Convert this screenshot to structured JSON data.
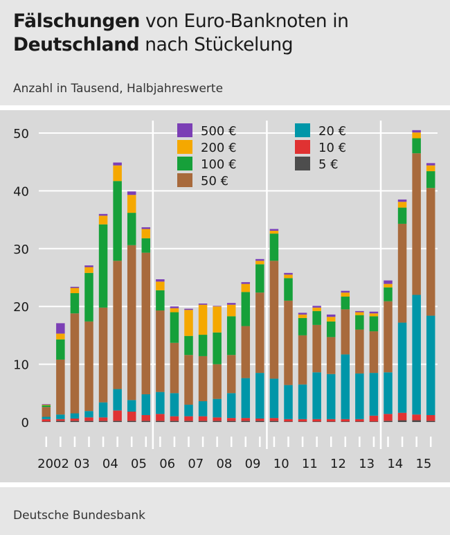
{
  "header": {
    "title_part1": "Fälschungen",
    "title_part2": " von Euro-Banknoten in",
    "title_part3": "Deutschland",
    "title_part4": " nach Stückelung",
    "subtitle": "Anzahl in Tausend, Halbjahreswerte"
  },
  "footer": {
    "source": "Deutsche Bundesbank"
  },
  "colors": {
    "500 €": "#7b3fb5",
    "200 €": "#f5a800",
    "100 €": "#16a03a",
    "50 €": "#a86a3c",
    "20 €": "#0096a8",
    "10 €": "#e03232",
    "5 €": "#4d4d4d"
  },
  "chart_data": {
    "type": "bar",
    "stacked": true,
    "ylim": [
      0,
      50
    ],
    "yticks": [
      0,
      10,
      20,
      30,
      40,
      50
    ],
    "grid": true,
    "legend_position": "top",
    "year_labels": [
      "2002",
      "03",
      "04",
      "05",
      "06",
      "07",
      "08",
      "09",
      "10",
      "11",
      "12",
      "13",
      "14",
      "15"
    ],
    "x": [
      "2002 H1",
      "2002 H2",
      "2003 H1",
      "2003 H2",
      "2004 H1",
      "2004 H2",
      "2005 H1",
      "2005 H2",
      "2006 H1",
      "2006 H2",
      "2007 H1",
      "2007 H2",
      "2008 H1",
      "2008 H2",
      "2009 H1",
      "2009 H2",
      "2010 H1",
      "2010 H2",
      "2011 H1",
      "2011 H2",
      "2012 H1",
      "2012 H2",
      "2013 H1",
      "2013 H2",
      "2014 H1",
      "2014 H2",
      "2015 H1",
      "2015 H2"
    ],
    "series": [
      {
        "name": "5 €",
        "values": [
          0.1,
          0.2,
          0.2,
          0.2,
          0.2,
          0.2,
          0.2,
          0.2,
          0.2,
          0.2,
          0.2,
          0.2,
          0.2,
          0.2,
          0.2,
          0.2,
          0.2,
          0.1,
          0.1,
          0.1,
          0.1,
          0.1,
          0.1,
          0.1,
          0.2,
          0.3,
          0.3,
          0.2
        ]
      },
      {
        "name": "10 €",
        "values": [
          0.4,
          0.3,
          0.4,
          0.6,
          0.6,
          1.8,
          1.6,
          1.0,
          1.2,
          0.8,
          0.8,
          0.8,
          0.6,
          0.5,
          0.5,
          0.4,
          0.5,
          0.4,
          0.4,
          0.4,
          0.4,
          0.4,
          0.4,
          1.0,
          1.2,
          1.3,
          1.0,
          1.0
        ]
      },
      {
        "name": "20 €",
        "values": [
          0.4,
          0.8,
          0.9,
          1.1,
          2.6,
          3.7,
          2.0,
          3.6,
          3.8,
          4.0,
          2.0,
          2.6,
          3.2,
          4.3,
          6.9,
          7.9,
          6.8,
          5.9,
          6.0,
          8.1,
          7.8,
          11.2,
          7.9,
          7.4,
          7.2,
          15.6,
          20.7,
          17.2
        ]
      },
      {
        "name": "50 €",
        "values": [
          1.7,
          9.5,
          17.3,
          15.5,
          16.4,
          22.2,
          26.8,
          24.5,
          14.1,
          8.7,
          8.6,
          7.8,
          6.0,
          6.6,
          9.0,
          13.9,
          20.4,
          14.6,
          8.5,
          8.2,
          6.4,
          7.8,
          7.6,
          7.2,
          12.3,
          17.1,
          24.5,
          22.1
        ]
      },
      {
        "name": "100 €",
        "values": [
          0.3,
          3.5,
          3.5,
          8.4,
          14.4,
          13.8,
          5.6,
          2.5,
          3.5,
          5.3,
          3.3,
          3.7,
          5.5,
          6.7,
          5.9,
          4.9,
          4.7,
          3.9,
          3.0,
          2.4,
          2.7,
          2.2,
          2.5,
          2.6,
          2.4,
          2.8,
          2.6,
          2.9
        ]
      },
      {
        "name": "200 €",
        "values": [
          0.1,
          1.0,
          0.9,
          1.0,
          1.5,
          2.7,
          3.1,
          1.6,
          1.5,
          0.7,
          4.5,
          5.2,
          4.5,
          2.0,
          1.4,
          0.6,
          0.5,
          0.6,
          0.6,
          0.6,
          0.8,
          0.7,
          0.5,
          0.5,
          0.6,
          1.0,
          1.0,
          1.0
        ]
      },
      {
        "name": "500 €",
        "values": [
          0.1,
          1.8,
          0.2,
          0.3,
          0.3,
          0.5,
          0.6,
          0.3,
          0.4,
          0.3,
          0.2,
          0.2,
          0.1,
          0.3,
          0.3,
          0.3,
          0.3,
          0.3,
          0.3,
          0.3,
          0.4,
          0.3,
          0.2,
          0.3,
          0.6,
          0.4,
          0.4,
          0.4
        ]
      }
    ],
    "legend": {
      "left": [
        "500 €",
        "200 €",
        "100 €",
        "50 €"
      ],
      "right": [
        "20 €",
        "10 €",
        "5 €"
      ]
    }
  }
}
